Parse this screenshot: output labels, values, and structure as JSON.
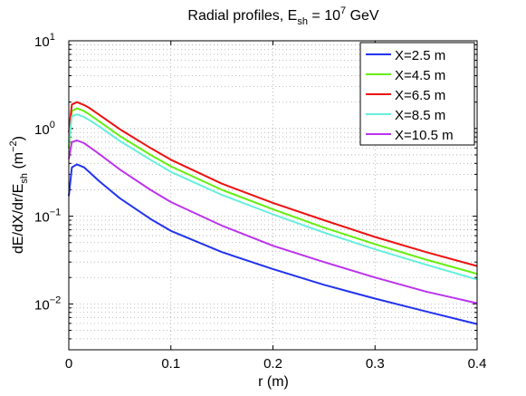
{
  "chart_data": {
    "type": "line",
    "title": "Radial profiles, E",
    "title_sub": "sh",
    "title_eq": " = 10",
    "title_sup": "7",
    "title_unit": " GeV",
    "xlabel": "r (m)",
    "ylabel_main": "dE/dX/dr/E",
    "ylabel_sub": "sh",
    "ylabel_unit_open": " (m",
    "ylabel_unit_sup": "−2",
    "ylabel_unit_close": ")",
    "xlim": [
      0,
      0.4
    ],
    "ylim": [
      0.003,
      10
    ],
    "yscale": "log",
    "grid": true,
    "legend_position": "top-right",
    "x_ticks": [
      {
        "value": 0,
        "label": "0"
      },
      {
        "value": 0.1,
        "label": "0.1"
      },
      {
        "value": 0.2,
        "label": "0.2"
      },
      {
        "value": 0.3,
        "label": "0.3"
      },
      {
        "value": 0.4,
        "label": "0.4"
      }
    ],
    "y_ticks": [
      {
        "value": 10,
        "base": "10",
        "exp": "1"
      },
      {
        "value": 1,
        "base": "10",
        "exp": "0"
      },
      {
        "value": 0.1,
        "base": "10",
        "exp": "−1"
      },
      {
        "value": 0.01,
        "base": "10",
        "exp": "−2"
      }
    ],
    "x": [
      0.0,
      0.003,
      0.008,
      0.015,
      0.02,
      0.03,
      0.05,
      0.08,
      0.1,
      0.15,
      0.2,
      0.25,
      0.3,
      0.35,
      0.4
    ],
    "series": [
      {
        "name": "X=2.5 m",
        "color": "#2233ee",
        "values": [
          0.17,
          0.36,
          0.39,
          0.36,
          0.32,
          0.25,
          0.16,
          0.093,
          0.068,
          0.039,
          0.025,
          0.0165,
          0.0115,
          0.0082,
          0.0059
        ]
      },
      {
        "name": "X=4.5 m",
        "color": "#66ee11",
        "values": [
          0.6,
          1.58,
          1.7,
          1.58,
          1.45,
          1.2,
          0.82,
          0.5,
          0.37,
          0.2,
          0.12,
          0.074,
          0.048,
          0.032,
          0.022
        ]
      },
      {
        "name": "X=6.5 m",
        "color": "#ee1111",
        "values": [
          0.9,
          1.88,
          2.0,
          1.85,
          1.72,
          1.43,
          0.98,
          0.6,
          0.44,
          0.235,
          0.142,
          0.09,
          0.058,
          0.039,
          0.027
        ]
      },
      {
        "name": "X=8.5 m",
        "color": "#66eedd",
        "values": [
          0.7,
          1.38,
          1.45,
          1.35,
          1.25,
          1.05,
          0.72,
          0.44,
          0.32,
          0.175,
          0.105,
          0.065,
          0.042,
          0.028,
          0.019
        ]
      },
      {
        "name": "X=10.5 m",
        "color": "#bb33ee",
        "values": [
          0.45,
          0.7,
          0.73,
          0.68,
          0.62,
          0.51,
          0.34,
          0.2,
          0.145,
          0.078,
          0.046,
          0.03,
          0.02,
          0.0138,
          0.0102
        ]
      }
    ]
  }
}
